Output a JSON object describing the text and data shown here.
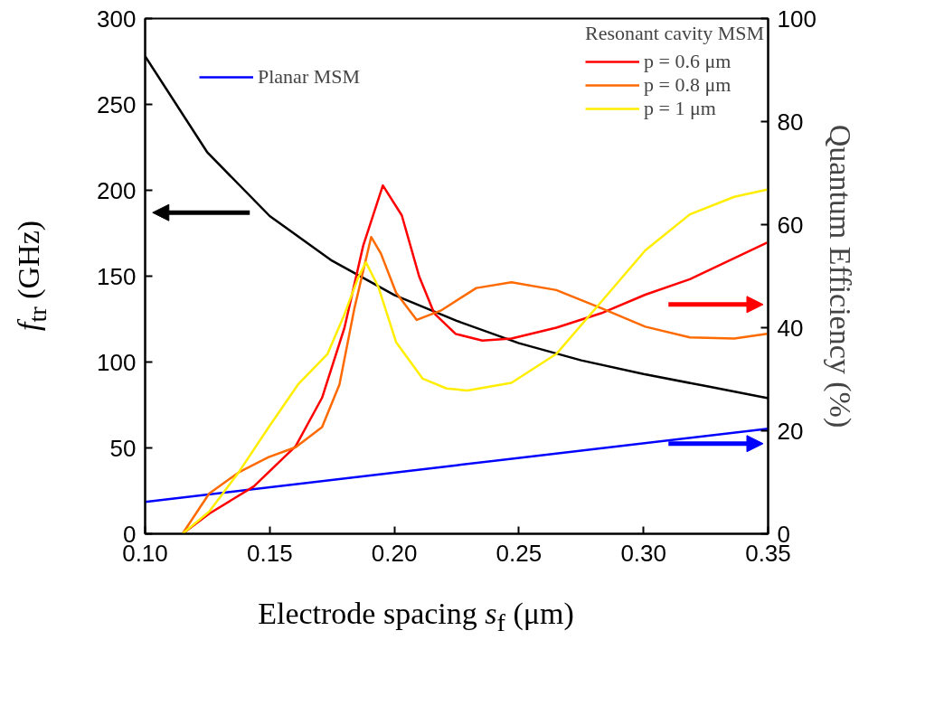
{
  "chart_data": {
    "type": "line",
    "xlabel": "Electrode spacing s$_{f}$ (μm)",
    "ylabel": "f$_{tr}$ (GHz)",
    "y2label": "Quantum Efficiency (%)",
    "legend_title": "Resonant cavity MSM",
    "legend": "top right",
    "grid": false,
    "xlim": [
      0.1,
      0.35
    ],
    "xticks": [
      {
        "value": 0.1,
        "label": "0.10"
      },
      0.15,
      {
        "value": 0.2,
        "label": "0.20"
      },
      0.25,
      {
        "value": 0.3,
        "label": "0.30"
      },
      0.35
    ],
    "ylim": [
      0,
      300
    ],
    "yticks": [
      0,
      50,
      100,
      150,
      200,
      250,
      300
    ],
    "y2lim": [
      0,
      100
    ],
    "y2ticks": [
      0,
      20,
      40,
      60,
      80,
      100
    ],
    "series": [
      {
        "color": "#000000",
        "x": [
          0.1,
          0.125,
          0.15,
          0.175,
          0.2,
          0.225,
          0.25,
          0.275,
          0.3,
          0.325,
          0.35
        ],
        "values": [
          278,
          222,
          185,
          159,
          139,
          124,
          111,
          101,
          93,
          86,
          79
        ]
      },
      {
        "name": "Planar MSM",
        "color": "#0000ff",
        "axis": "y2",
        "x": [
          0.1,
          0.225,
          0.35
        ],
        "values": [
          6.2,
          13.3,
          20.4
        ]
      },
      {
        "name": "p = 0.6 μm",
        "color": "#ff0000",
        "axis": "y2",
        "x": [
          0.115,
          0.1257,
          0.1436,
          0.1604,
          0.171,
          0.18,
          0.1875,
          0.1954,
          0.203,
          0.21,
          0.216,
          0.2246,
          0.2353,
          0.247,
          0.265,
          0.283,
          0.3007,
          0.3186,
          0.3364,
          0.3496
        ],
        "values": [
          0,
          3.9,
          9.2,
          17.0,
          26.4,
          40,
          55.9,
          67.6,
          61.8,
          49.9,
          42.8,
          38.8,
          37.5,
          37.9,
          40,
          42.8,
          46.4,
          49.4,
          53.5,
          56.5
        ]
      },
      {
        "name": "p = 0.8 μm",
        "color": "#ff6a00",
        "axis": "y2",
        "x": [
          0.115,
          0.1257,
          0.1375,
          0.1496,
          0.1604,
          0.171,
          0.178,
          0.184,
          0.1907,
          0.1946,
          0.2007,
          0.209,
          0.2186,
          0.2329,
          0.247,
          0.265,
          0.283,
          0.3007,
          0.3186,
          0.3364,
          0.3496
        ],
        "values": [
          0,
          7.8,
          11.9,
          14.9,
          16.8,
          20.7,
          29,
          43.8,
          57.6,
          54.4,
          46.8,
          41.5,
          43.3,
          47.7,
          48.8,
          47.3,
          43.8,
          40.2,
          38.1,
          37.9,
          38.8
        ]
      },
      {
        "name": "p = 1 μm",
        "color": "#ffee00",
        "axis": "y2",
        "x": [
          0.115,
          0.1257,
          0.1375,
          0.1496,
          0.1614,
          0.1732,
          0.18,
          0.1854,
          0.1886,
          0.1936,
          0.2007,
          0.2114,
          0.221,
          0.2293,
          0.247,
          0.265,
          0.283,
          0.3007,
          0.3186,
          0.3364,
          0.3496
        ],
        "values": [
          0,
          4.3,
          11.9,
          20.7,
          29,
          34.9,
          42.6,
          49.6,
          52.7,
          47.9,
          37.2,
          30.1,
          28.2,
          27.8,
          29.3,
          34.9,
          45,
          55,
          62,
          65.4,
          66.8
        ]
      }
    ]
  }
}
